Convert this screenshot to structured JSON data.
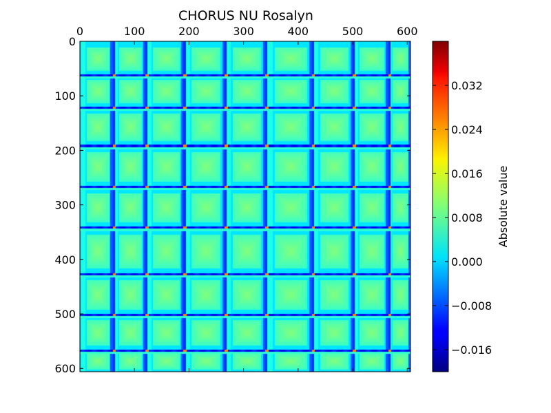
{
  "chart_data": {
    "type": "heatmap",
    "title": "CHORUS NU Rosalyn",
    "x_axis": {
      "range": [
        0,
        606
      ],
      "ticks": [
        0,
        100,
        200,
        300,
        400,
        500,
        600
      ],
      "tick_labels": [
        "0",
        "100",
        "200",
        "300",
        "400",
        "500",
        "600"
      ],
      "position": "top"
    },
    "y_axis": {
      "range": [
        0,
        606
      ],
      "ticks": [
        0,
        100,
        200,
        300,
        400,
        500,
        600
      ],
      "tick_labels": [
        "0",
        "100",
        "200",
        "300",
        "400",
        "500",
        "600"
      ],
      "inverted": true
    },
    "block_boundaries": [
      0,
      60,
      120,
      190,
      265,
      340,
      425,
      500,
      565,
      606
    ],
    "colorbar": {
      "label": "Absolute value",
      "colormap": "jet",
      "range": [
        -0.02,
        0.04
      ],
      "ticks": [
        -0.016,
        -0.008,
        0.0,
        0.008,
        0.016,
        0.024,
        0.032
      ],
      "tick_labels": [
        "−0.016",
        "−0.008",
        "0.000",
        "0.008",
        "0.016",
        "0.024",
        "0.032"
      ]
    },
    "typical_values": {
      "background": 0.001,
      "block_peak": 0.011,
      "boundary_min": -0.012,
      "boundary_max": 0.025
    }
  }
}
